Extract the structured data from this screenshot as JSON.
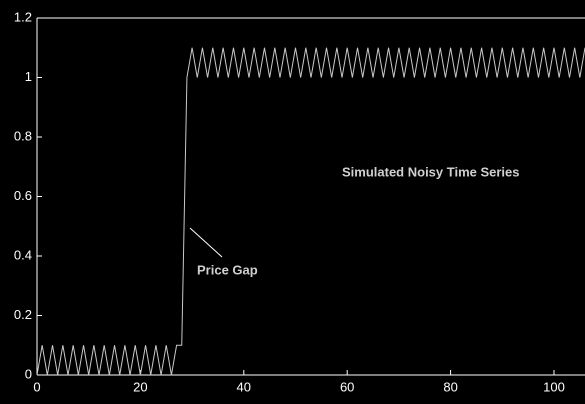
{
  "chart_data": {
    "type": "line",
    "annotations": [
      "Simulated Noisy Time Series",
      "Price Gap"
    ],
    "x": [
      0,
      1,
      2,
      3,
      4,
      5,
      6,
      7,
      8,
      9,
      10,
      11,
      12,
      13,
      14,
      15,
      16,
      17,
      18,
      19,
      20,
      21,
      22,
      23,
      24,
      25,
      26,
      27,
      28,
      29,
      30,
      31,
      32,
      33,
      34,
      35,
      36,
      37,
      38,
      39,
      40,
      41,
      42,
      43,
      44,
      45,
      46,
      47,
      48,
      49,
      50,
      51,
      52,
      53,
      54,
      55,
      56,
      57,
      58,
      59,
      60,
      61,
      62,
      63,
      64,
      65,
      66,
      67,
      68,
      69,
      70,
      71,
      72,
      73,
      74,
      75,
      76,
      77,
      78,
      79,
      80,
      81,
      82,
      83,
      84,
      85,
      86,
      87,
      88,
      89,
      90,
      91,
      92,
      93,
      94,
      95,
      96,
      97,
      98,
      99,
      100,
      101,
      102,
      103,
      104,
      105,
      106
    ],
    "values": [
      0,
      0.1,
      0,
      0.1,
      0,
      0.1,
      0,
      0.1,
      0,
      0.1,
      0,
      0.1,
      0,
      0.1,
      0,
      0.1,
      0,
      0.1,
      0,
      0.1,
      0,
      0.1,
      0,
      0.1,
      0,
      0.1,
      0,
      0.1,
      0.1,
      1,
      1.1,
      1,
      1.1,
      1,
      1.1,
      1,
      1.1,
      1,
      1.1,
      1,
      1.1,
      1,
      1.1,
      1,
      1.1,
      1,
      1.1,
      1,
      1.1,
      1,
      1.1,
      1,
      1.1,
      1,
      1.1,
      1,
      1.1,
      1,
      1.1,
      1,
      1.1,
      1,
      1.1,
      1,
      1.1,
      1,
      1.1,
      1,
      1.1,
      1,
      1.1,
      1,
      1.1,
      1,
      1.1,
      1,
      1.1,
      1,
      1.1,
      1,
      1.1,
      1,
      1.1,
      1,
      1.1,
      1,
      1.1,
      1,
      1.1,
      1,
      1.1,
      1,
      1.1,
      1,
      1.1,
      1,
      1.1,
      1,
      1.1,
      1,
      1.1,
      1,
      1.1,
      1,
      1.1,
      1,
      1.1
    ],
    "color": "#c8c8c8",
    "xlim": [
      0,
      106
    ],
    "xticks": [
      0,
      20,
      40,
      60,
      80,
      100
    ],
    "ylim": [
      0,
      1.2
    ],
    "yticks": [
      0,
      0.2,
      0.4,
      0.6,
      0.8,
      1,
      1.2
    ]
  }
}
